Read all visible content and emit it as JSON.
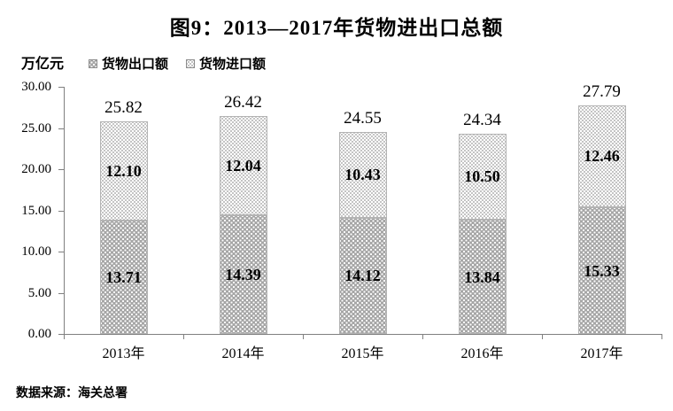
{
  "title": "图9：2013—2017年货物进出口总额",
  "y_axis_unit_label": "万亿元",
  "legend": {
    "export_label": "货物出口额",
    "import_label": "货物进口额"
  },
  "source_note": "数据来源：海关总署",
  "chart_data": {
    "type": "bar",
    "stacked": true,
    "title": "图9：2013—2017年货物进出口总额",
    "ylabel": "万亿元",
    "categories": [
      "2013年",
      "2014年",
      "2015年",
      "2016年",
      "2017年"
    ],
    "series": [
      {
        "name": "货物出口额",
        "values": [
          13.71,
          14.39,
          14.12,
          13.84,
          15.33
        ]
      },
      {
        "name": "货物进口额",
        "values": [
          12.1,
          12.04,
          10.43,
          10.5,
          12.46
        ]
      }
    ],
    "totals": [
      25.82,
      26.42,
      24.55,
      24.34,
      27.79
    ],
    "ylim": [
      0,
      30
    ],
    "ytick_step": 5,
    "ytick_labels": [
      "0.00",
      "5.00",
      "10.00",
      "15.00",
      "20.00",
      "25.00",
      "30.00"
    ],
    "grid": false,
    "legend_position": "top-left",
    "colors": {
      "export_fill": "#a6a6a6",
      "export_dot": "#ffffff",
      "import_fill": "#ffffff",
      "import_dot": "#b0b0b0",
      "axis": "#808080",
      "text": "#000000"
    }
  }
}
